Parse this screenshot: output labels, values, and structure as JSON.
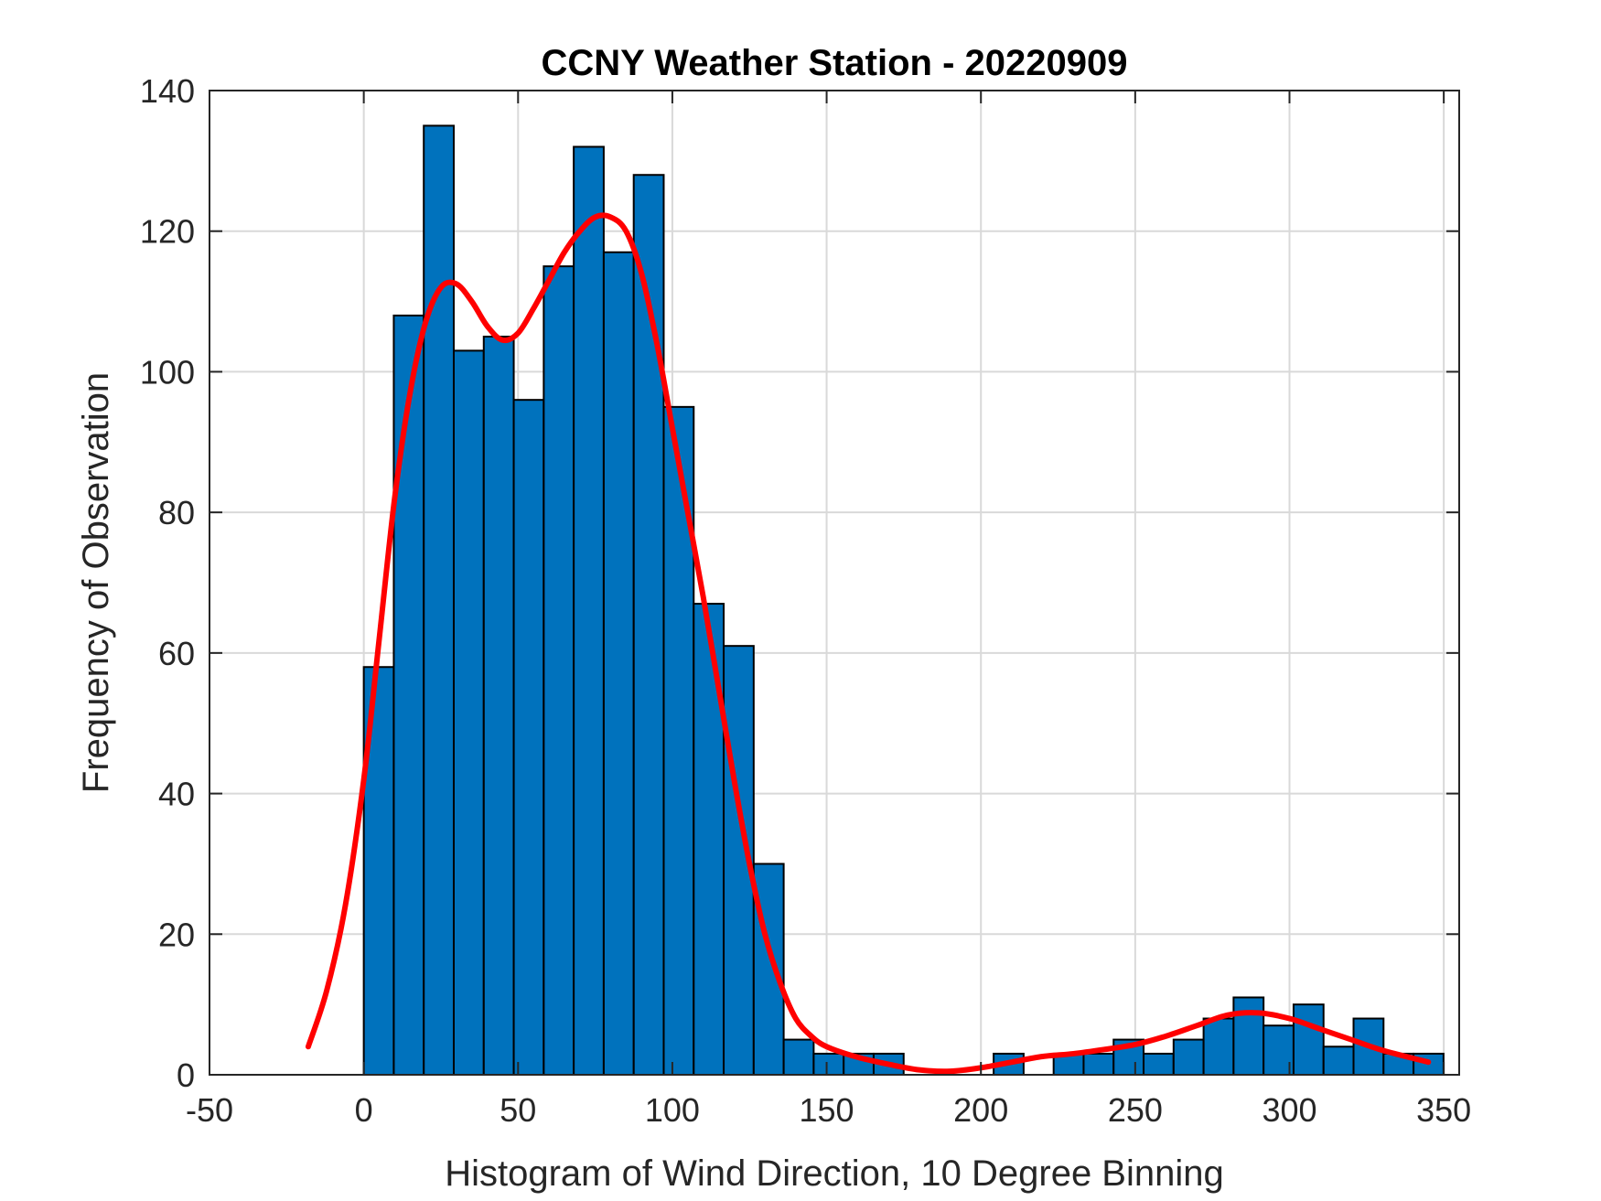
{
  "chart_data": {
    "type": "bar",
    "title": "CCNY Weather Station - 20220909",
    "xlabel": "Histogram of Wind Direction, 10 Degree Binning",
    "ylabel": "Frequency of Observation",
    "xlim": [
      -50,
      355
    ],
    "ylim": [
      0,
      140
    ],
    "xticks": [
      -50,
      0,
      50,
      100,
      150,
      200,
      250,
      300,
      350
    ],
    "yticks": [
      0,
      20,
      40,
      60,
      80,
      100,
      120,
      140
    ],
    "grid": true,
    "bin_width": 9.72,
    "bin_edges_start": 0,
    "bars": {
      "color": "#0072BD",
      "values": [
        58,
        108,
        135,
        103,
        105,
        96,
        115,
        132,
        117,
        128,
        95,
        67,
        61,
        30,
        5,
        3,
        3,
        3,
        0,
        0,
        0,
        3,
        0,
        3,
        3,
        5,
        3,
        5,
        8,
        11,
        7,
        10,
        4,
        8,
        3,
        3
      ]
    },
    "fit_curve": {
      "color": "#FF0000",
      "points": [
        [
          -18,
          4
        ],
        [
          -12,
          12
        ],
        [
          -6,
          24
        ],
        [
          0,
          42
        ],
        [
          5,
          62
        ],
        [
          10,
          82
        ],
        [
          15,
          97
        ],
        [
          20,
          107
        ],
        [
          25,
          112
        ],
        [
          30,
          112.5
        ],
        [
          35,
          110
        ],
        [
          40,
          106.5
        ],
        [
          45,
          104.5
        ],
        [
          50,
          105.5
        ],
        [
          55,
          109
        ],
        [
          60,
          113
        ],
        [
          65,
          117
        ],
        [
          70,
          120
        ],
        [
          75,
          122
        ],
        [
          80,
          122
        ],
        [
          85,
          120
        ],
        [
          90,
          114
        ],
        [
          95,
          104
        ],
        [
          100,
          92
        ],
        [
          105,
          80
        ],
        [
          110,
          68
        ],
        [
          115,
          55
        ],
        [
          120,
          42
        ],
        [
          125,
          30
        ],
        [
          130,
          20
        ],
        [
          135,
          13
        ],
        [
          140,
          8
        ],
        [
          145,
          5.5
        ],
        [
          150,
          4
        ],
        [
          160,
          2.5
        ],
        [
          170,
          1.5
        ],
        [
          180,
          0.7
        ],
        [
          190,
          0.5
        ],
        [
          200,
          1
        ],
        [
          210,
          1.8
        ],
        [
          220,
          2.6
        ],
        [
          230,
          3
        ],
        [
          240,
          3.6
        ],
        [
          250,
          4.3
        ],
        [
          260,
          5.5
        ],
        [
          270,
          7
        ],
        [
          280,
          8.5
        ],
        [
          290,
          8.8
        ],
        [
          300,
          8
        ],
        [
          310,
          6.5
        ],
        [
          320,
          5
        ],
        [
          330,
          3.5
        ],
        [
          345,
          1.8
        ]
      ]
    }
  }
}
